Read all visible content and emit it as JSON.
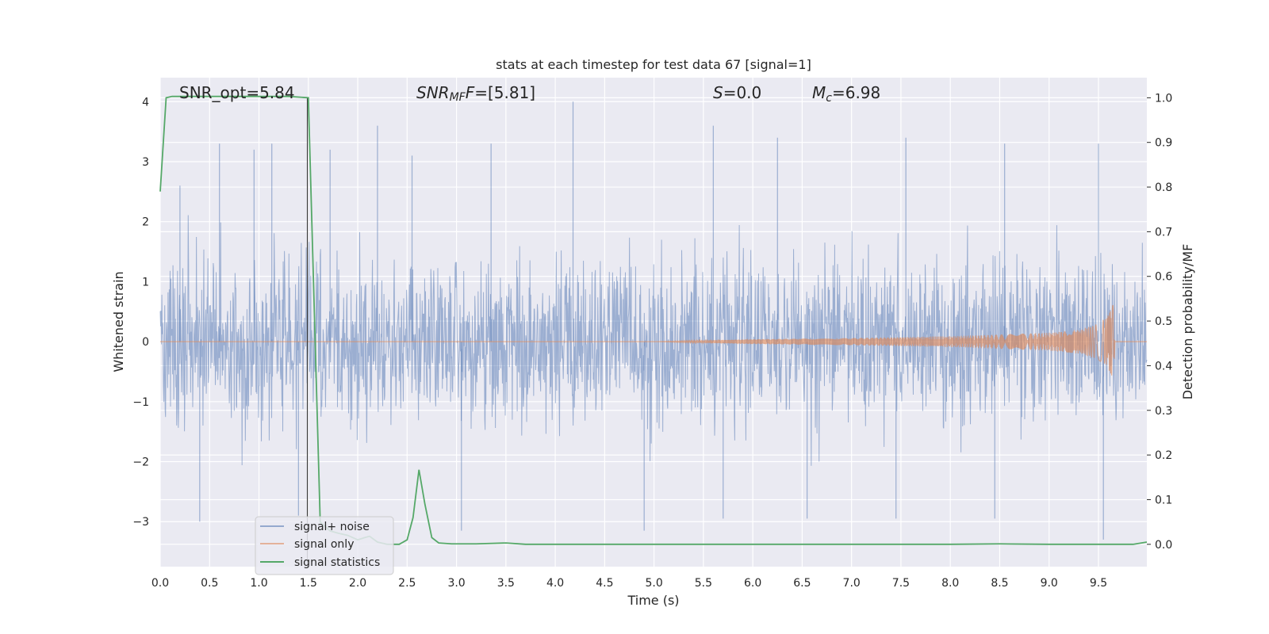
{
  "chart_data": {
    "type": "line",
    "title": "stats at each timestep for test data 67 [signal=1]",
    "xlabel": "Time (s)",
    "ylabel": "Whitened strain",
    "ylabel_right": "Detection probability/MF",
    "xlim": [
      0.0,
      9.99
    ],
    "ylim": [
      -3.75,
      4.4
    ],
    "ylim_right": [
      -0.05,
      1.045
    ],
    "x_ticks": [
      0.0,
      0.5,
      1.0,
      1.5,
      2.0,
      2.5,
      3.0,
      3.5,
      4.0,
      4.5,
      5.0,
      5.5,
      6.0,
      6.5,
      7.0,
      7.5,
      8.0,
      8.5,
      9.0,
      9.5
    ],
    "x_tick_labels": [
      "0.0",
      "0.5",
      "1.0",
      "1.5",
      "2.0",
      "2.5",
      "3.0",
      "3.5",
      "4.0",
      "4.5",
      "5.0",
      "5.5",
      "6.0",
      "6.5",
      "7.0",
      "7.5",
      "8.0",
      "8.5",
      "9.0",
      "9.5"
    ],
    "y_ticks": [
      -3,
      -2,
      -1,
      0,
      1,
      2,
      3,
      4
    ],
    "y_tick_labels": [
      "−3",
      "−2",
      "−1",
      "0",
      "1",
      "2",
      "3",
      "4"
    ],
    "y_right_ticks": [
      0.0,
      0.1,
      0.2,
      0.3,
      0.4,
      0.5,
      0.6,
      0.7,
      0.8,
      0.9,
      1.0
    ],
    "y_right_tick_labels": [
      "0.0",
      "0.1",
      "0.2",
      "0.3",
      "0.4",
      "0.5",
      "0.6",
      "0.7",
      "0.8",
      "0.9",
      "1.0"
    ],
    "grid": true,
    "legend_position": "lower-left",
    "annotations": {
      "snr_opt": "SNR_opt=5.84",
      "snr_mf_base": "SNR",
      "snr_mf_sub": "MF",
      "snr_mf_value": "=[5.81]",
      "s_symbol": "S",
      "s_value": "=0.0",
      "mc_symbol": "M",
      "mc_sub": "c",
      "mc_value": "=6.98"
    },
    "vertical_line_x": 1.49,
    "series": [
      {
        "name": "signal+ noise",
        "color": "#4c72b0",
        "axis": "left",
        "description_values": {
          "typical_envelope": [
            -2.0,
            2.0
          ],
          "peaks": [
            {
              "x": 0.2,
              "y": 2.6
            },
            {
              "x": 0.6,
              "y": 3.3
            },
            {
              "x": 0.95,
              "y": 3.2
            },
            {
              "x": 1.13,
              "y": 3.3
            },
            {
              "x": 1.72,
              "y": 3.2
            },
            {
              "x": 2.2,
              "y": 3.6
            },
            {
              "x": 2.55,
              "y": 3.1
            },
            {
              "x": 3.35,
              "y": 3.3
            },
            {
              "x": 4.18,
              "y": 4.0
            },
            {
              "x": 5.6,
              "y": 3.6
            },
            {
              "x": 6.25,
              "y": 3.4
            },
            {
              "x": 7.55,
              "y": 3.4
            },
            {
              "x": 8.55,
              "y": 3.3
            },
            {
              "x": 9.5,
              "y": 3.3
            },
            {
              "x": 0.4,
              "y": -3.0
            },
            {
              "x": 1.4,
              "y": -2.9
            },
            {
              "x": 3.05,
              "y": -3.15
            },
            {
              "x": 4.9,
              "y": -3.15
            },
            {
              "x": 5.7,
              "y": -2.95
            },
            {
              "x": 6.55,
              "y": -2.95
            },
            {
              "x": 7.45,
              "y": -2.95
            },
            {
              "x": 8.45,
              "y": -2.95
            },
            {
              "x": 9.55,
              "y": -3.3
            }
          ]
        }
      },
      {
        "name": "signal only",
        "color": "#dd8452",
        "axis": "left",
        "envelope": {
          "x": [
            0.0,
            5.0,
            6.0,
            7.0,
            8.0,
            8.5,
            9.0,
            9.3,
            9.5,
            9.6,
            9.65,
            9.67
          ],
          "amp": [
            0.0,
            0.0,
            0.04,
            0.06,
            0.09,
            0.12,
            0.15,
            0.2,
            0.3,
            0.45,
            0.63,
            0.0
          ]
        }
      },
      {
        "name": "signal statistics",
        "color": "#55a868",
        "axis": "right",
        "x": [
          0.0,
          0.06,
          0.12,
          0.3,
          0.6,
          1.0,
          1.3,
          1.5,
          1.62,
          1.72,
          1.8,
          1.9,
          2.0,
          2.07,
          2.12,
          2.2,
          2.3,
          2.42,
          2.5,
          2.56,
          2.62,
          2.68,
          2.75,
          2.82,
          2.95,
          3.2,
          3.5,
          3.7,
          4.0,
          5.0,
          6.0,
          7.0,
          8.0,
          8.5,
          9.0,
          9.5,
          9.85,
          9.99
        ],
        "values": [
          0.79,
          1.0,
          1.003,
          1.003,
          1.003,
          1.003,
          1.003,
          1.0,
          0.05,
          0.03,
          0.025,
          0.02,
          0.01,
          0.015,
          0.018,
          0.005,
          0.0,
          0.0,
          0.01,
          0.06,
          0.167,
          0.09,
          0.015,
          0.003,
          0.001,
          0.001,
          0.003,
          0.0,
          0.0,
          0.0,
          0.0,
          0.0,
          0.0,
          0.001,
          0.0,
          0.0,
          0.0,
          0.005
        ]
      }
    ]
  }
}
